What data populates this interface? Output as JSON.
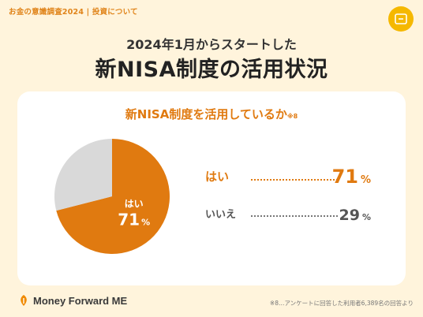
{
  "header": {
    "survey_label": "お金の意識調査2024 | 投資について",
    "subtitle": "2024年1月からスタートした",
    "title": "新NISA制度の活用状況"
  },
  "question": {
    "text": "新NISA制度を活用しているか",
    "note": "※8"
  },
  "chart_data": {
    "type": "pie",
    "title": "新NISA制度を活用しているか",
    "categories": [
      "はい",
      "いいえ"
    ],
    "values": [
      71,
      29
    ],
    "unit": "%",
    "colors": [
      "#E07A10",
      "#D9D9D9"
    ],
    "slice_label": {
      "category": "はい",
      "value": "71",
      "unit": "%"
    }
  },
  "legend": [
    {
      "label": "はい",
      "value": "71",
      "unit": "%"
    },
    {
      "label": "いいえ",
      "value": "29",
      "unit": "%"
    }
  ],
  "footer": {
    "brand": "Money Forward ME",
    "note": "※8…アンケートに回答した利用者6,389名の回答より"
  },
  "icons": {
    "corner_badge": "card-icon",
    "brand_logo": "money-forward-logo-icon"
  },
  "colors": {
    "background": "#FFF4DC",
    "accent": "#E07A10",
    "badge": "#F5B800"
  }
}
